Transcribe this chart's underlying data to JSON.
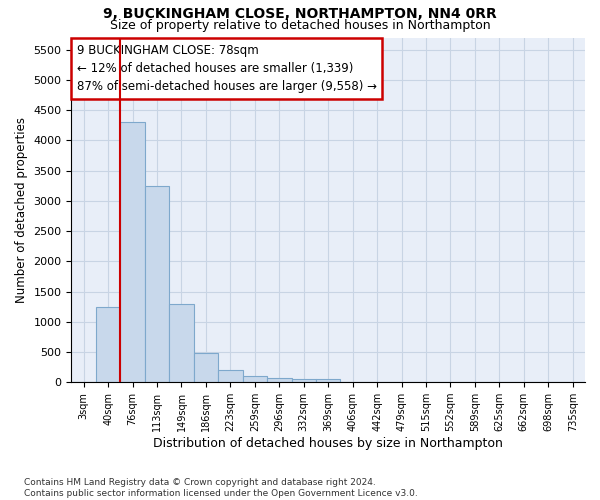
{
  "title1": "9, BUCKINGHAM CLOSE, NORTHAMPTON, NN4 0RR",
  "title2": "Size of property relative to detached houses in Northampton",
  "xlabel": "Distribution of detached houses by size in Northampton",
  "ylabel": "Number of detached properties",
  "categories": [
    "3sqm",
    "40sqm",
    "76sqm",
    "113sqm",
    "149sqm",
    "186sqm",
    "223sqm",
    "259sqm",
    "296sqm",
    "332sqm",
    "369sqm",
    "406sqm",
    "442sqm",
    "479sqm",
    "515sqm",
    "552sqm",
    "589sqm",
    "625sqm",
    "662sqm",
    "698sqm",
    "735sqm"
  ],
  "values": [
    0,
    1250,
    4300,
    3250,
    1300,
    480,
    200,
    100,
    70,
    60,
    50,
    0,
    0,
    0,
    0,
    0,
    0,
    0,
    0,
    0,
    0
  ],
  "bar_color": "#c8d8eb",
  "bar_edge_color": "#7ea8cc",
  "vline_color": "#cc0000",
  "annotation_text": "9 BUCKINGHAM CLOSE: 78sqm\n← 12% of detached houses are smaller (1,339)\n87% of semi-detached houses are larger (9,558) →",
  "annotation_box_color": "#ffffff",
  "annotation_box_edge_color": "#cc0000",
  "ylim": [
    0,
    5700
  ],
  "yticks": [
    0,
    500,
    1000,
    1500,
    2000,
    2500,
    3000,
    3500,
    4000,
    4500,
    5000,
    5500
  ],
  "footnote": "Contains HM Land Registry data © Crown copyright and database right 2024.\nContains public sector information licensed under the Open Government Licence v3.0.",
  "grid_color": "#c8d4e4",
  "background_color": "#e8eef8"
}
